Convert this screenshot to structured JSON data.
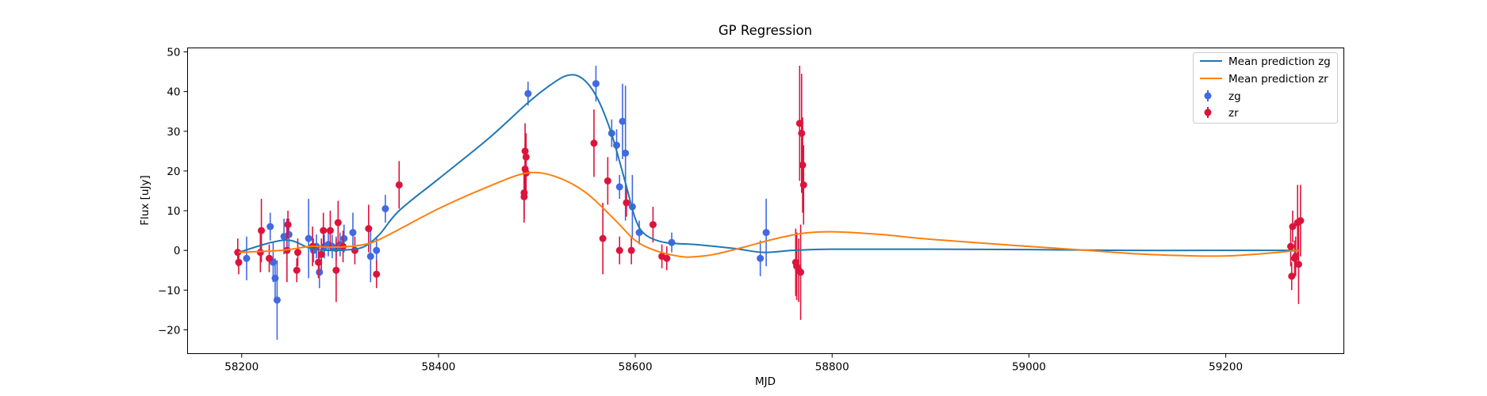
{
  "chart_data": {
    "type": "scatter",
    "title": "GP Regression",
    "xlabel": "MJD",
    "ylabel": "Flux [uJy]",
    "xlim": [
      58145,
      59320
    ],
    "ylim": [
      -26,
      51
    ],
    "xticks": [
      58200,
      58400,
      58600,
      58800,
      59000,
      59200
    ],
    "yticks": [
      -20,
      -10,
      0,
      10,
      20,
      30,
      40,
      50
    ],
    "grid": false,
    "legend_position": "top-right",
    "colors": {
      "zg_points": "#4169e1",
      "zr_points": "#dc143c",
      "zg_mean": "#1f77b4",
      "zr_mean": "#ff7f0e"
    },
    "legend": {
      "mean_zg": "Mean prediction zg",
      "mean_zr": "Mean prediction zr",
      "zg": "zg",
      "zr": "zr"
    },
    "series": [
      {
        "name": "Mean prediction zg",
        "kind": "line",
        "color": "#1f77b4",
        "x": [
          58197,
          58230,
          58250,
          58270,
          58290,
          58310,
          58325,
          58340,
          58360,
          58400,
          58450,
          58490,
          58510,
          58530,
          58545,
          58560,
          58575,
          58590,
          58600,
          58610,
          58630,
          58660,
          58700,
          58730,
          58760,
          58800,
          58900,
          59000,
          59100,
          59200,
          59275
        ],
        "y": [
          -0.5,
          2,
          2.5,
          0.5,
          0,
          0.2,
          1,
          4,
          10,
          18,
          28,
          37,
          41,
          44,
          43.5,
          39,
          30,
          17,
          8,
          4,
          2,
          1.5,
          0.5,
          -0.5,
          0,
          0.3,
          0.3,
          0.2,
          0,
          0,
          0
        ]
      },
      {
        "name": "Mean prediction zr",
        "kind": "line",
        "color": "#ff7f0e",
        "x": [
          58197,
          58240,
          58270,
          58290,
          58310,
          58330,
          58350,
          58400,
          58450,
          58490,
          58520,
          58550,
          58580,
          58600,
          58620,
          58645,
          58660,
          58680,
          58710,
          58740,
          58770,
          58800,
          58850,
          58900,
          59000,
          59060,
          59120,
          59200,
          59275
        ],
        "y": [
          -0.5,
          0,
          1,
          0.8,
          1,
          1.8,
          4,
          10.5,
          16,
          19.5,
          18.5,
          14.5,
          7.5,
          2.5,
          0,
          -1.5,
          -1.6,
          -1,
          0.8,
          2.8,
          4.3,
          4.7,
          4,
          2.8,
          1,
          0,
          -1,
          -1.4,
          0
        ]
      },
      {
        "name": "zg",
        "kind": "errorbar",
        "color": "#4169e1",
        "points": [
          [
            58205,
            -2,
            5.5
          ],
          [
            58229,
            6,
            3.5
          ],
          [
            58232,
            -3,
            5
          ],
          [
            58234,
            -7,
            5
          ],
          [
            58236,
            -12.5,
            10
          ],
          [
            58243,
            3.5,
            4.5
          ],
          [
            58248,
            4,
            4
          ],
          [
            58268,
            3,
            10
          ],
          [
            58273,
            0,
            3
          ],
          [
            58276,
            1,
            3
          ],
          [
            58279,
            -5.5,
            4
          ],
          [
            58284,
            1,
            3
          ],
          [
            58288,
            1.5,
            3
          ],
          [
            58292,
            1,
            3
          ],
          [
            58296,
            0.5,
            3
          ],
          [
            58300,
            1.5,
            3
          ],
          [
            58304,
            3,
            3.5
          ],
          [
            58313,
            4.5,
            5
          ],
          [
            58331,
            -1.5,
            6.5
          ],
          [
            58337,
            0,
            3.5
          ],
          [
            58346,
            10.5,
            3.5
          ],
          [
            58491,
            39.5,
            3
          ],
          [
            58560,
            42,
            4.5
          ],
          [
            58576,
            29.5,
            3.5
          ],
          [
            58581,
            26.5,
            4
          ],
          [
            58584,
            16,
            3
          ],
          [
            58587,
            32.5,
            9.5
          ],
          [
            58590,
            24.5,
            17
          ],
          [
            58597,
            11,
            8
          ],
          [
            58604,
            4.5,
            3
          ],
          [
            58637,
            2,
            2.5
          ],
          [
            58727,
            -2,
            4.5
          ],
          [
            58733,
            4.5,
            8.5
          ]
        ]
      },
      {
        "name": "zr",
        "kind": "errorbar",
        "color": "#dc143c",
        "points": [
          [
            58196,
            -0.5,
            3.5
          ],
          [
            58197,
            -3,
            3
          ],
          [
            58219,
            -0.5,
            5
          ],
          [
            58220,
            5,
            8
          ],
          [
            58228,
            -2,
            3.5
          ],
          [
            58246,
            0,
            8
          ],
          [
            58247,
            6.5,
            3.5
          ],
          [
            58256,
            -5,
            3
          ],
          [
            58257,
            -0.5,
            3.5
          ],
          [
            58272,
            1,
            5
          ],
          [
            58278,
            -3,
            4
          ],
          [
            58281,
            -1,
            4
          ],
          [
            58283,
            5,
            4.5
          ],
          [
            58290,
            5,
            5
          ],
          [
            58296,
            -5,
            8
          ],
          [
            58298,
            7,
            5.5
          ],
          [
            58303,
            1,
            4
          ],
          [
            58315,
            0,
            3.5
          ],
          [
            58329,
            5.5,
            6
          ],
          [
            58337,
            -6,
            3.5
          ],
          [
            58360,
            16.5,
            6
          ],
          [
            58487,
            13.5,
            6.5
          ],
          [
            58487,
            14.5,
            6.5
          ],
          [
            58488,
            20.5,
            6.5
          ],
          [
            58488,
            25,
            7
          ],
          [
            58489,
            23.5,
            6
          ],
          [
            58489,
            19.5,
            6
          ],
          [
            58558,
            27,
            8.5
          ],
          [
            58567,
            3,
            9
          ],
          [
            58572,
            17.5,
            6
          ],
          [
            58584,
            0,
            3.5
          ],
          [
            58591,
            12,
            3.5
          ],
          [
            58596,
            0,
            3.5
          ],
          [
            58618,
            6.5,
            4.5
          ],
          [
            58627,
            -1.5,
            3
          ],
          [
            58632,
            -2,
            3
          ],
          [
            58763,
            -3,
            8.5
          ],
          [
            58764,
            -4,
            8.5
          ],
          [
            58766,
            -5,
            8
          ],
          [
            58767,
            32,
            14.5
          ],
          [
            58768,
            -5.5,
            12
          ],
          [
            58769,
            29.5,
            15
          ],
          [
            58770,
            21.5,
            12
          ],
          [
            58771,
            16.5,
            10
          ],
          [
            59266,
            1,
            5
          ],
          [
            59267,
            -6.5,
            3.5
          ],
          [
            59268,
            6,
            4
          ],
          [
            59270,
            -2,
            4.5
          ],
          [
            59271,
            -1.5,
            5
          ],
          [
            59273,
            7,
            9.5
          ],
          [
            59274,
            -3.5,
            10
          ],
          [
            59276,
            7.5,
            9
          ]
        ]
      }
    ]
  }
}
